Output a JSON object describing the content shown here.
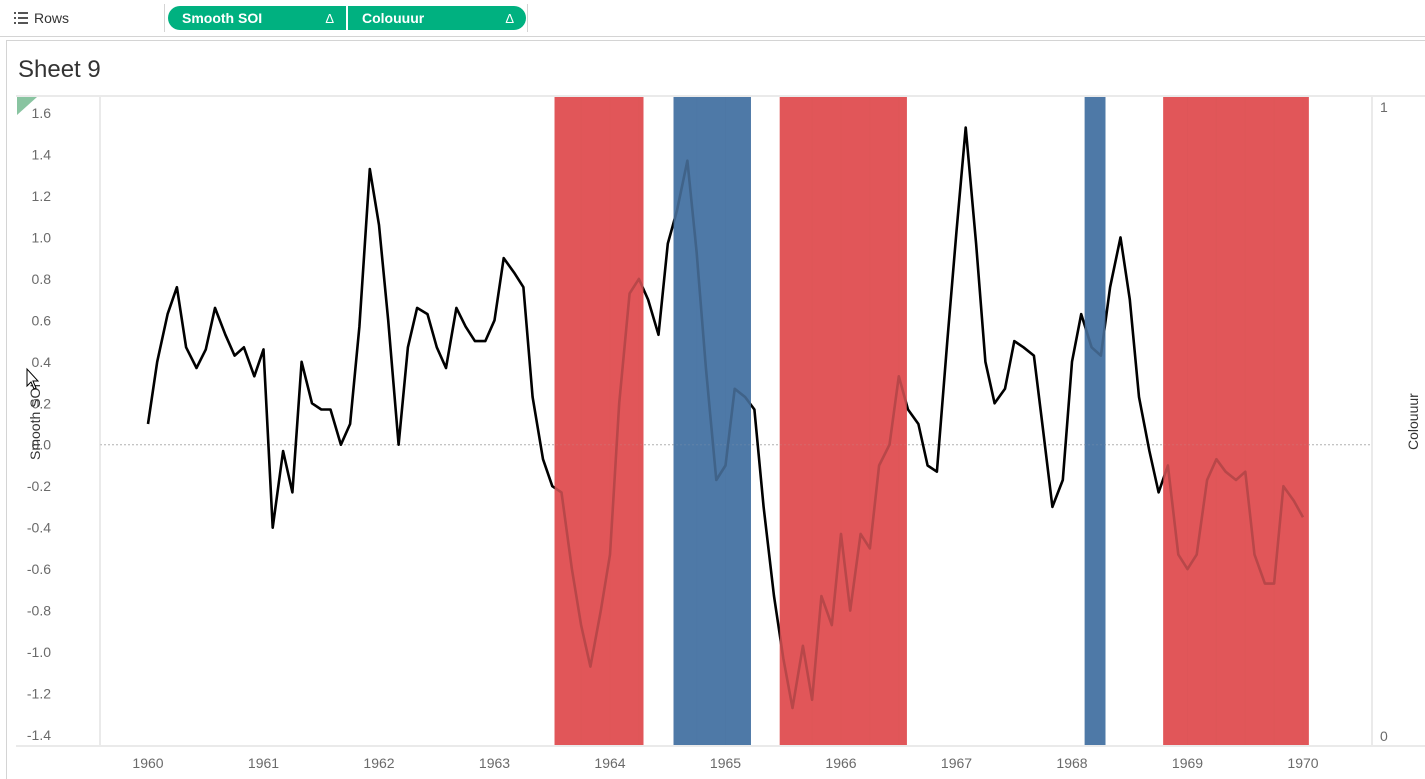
{
  "shelf": {
    "label": "Rows",
    "icon": "rows-list-icon",
    "pills": [
      {
        "label": "Smooth SOI",
        "marker": "Δ"
      },
      {
        "label": "Colouuur",
        "marker": "Δ"
      }
    ],
    "pill_color": "#00b180"
  },
  "sheet": {
    "title": "Sheet 9"
  },
  "chart_data": {
    "type": "line",
    "x_ticks": [
      "1960",
      "1961",
      "1962",
      "1963",
      "1964",
      "1965",
      "1966",
      "1967",
      "1968",
      "1969",
      "1970"
    ],
    "y_ticks": [
      "1.6",
      "1.4",
      "1.2",
      "1.0",
      "0.8",
      "0.6",
      "0.4",
      "0.2",
      "0.0",
      "-0.2",
      "-0.4",
      "-0.6",
      "-0.8",
      "-1.0",
      "-1.2",
      "-1.4"
    ],
    "y_right_ticks": [
      "1",
      "0"
    ],
    "ylabel": "Smooth SOI",
    "ylabel_right": "Colouuur",
    "ylim": [
      -1.4,
      1.6
    ],
    "xlim": [
      1959.9,
      1970.45
    ],
    "y_right_range": [
      0,
      1
    ],
    "zero_line": true,
    "line_color": "#000000",
    "series": [
      {
        "name": "Smooth SOI",
        "points": [
          [
            1960.0,
            0.1
          ],
          [
            1960.08,
            0.4
          ],
          [
            1960.17,
            0.63
          ],
          [
            1960.25,
            0.76
          ],
          [
            1960.33,
            0.47
          ],
          [
            1960.42,
            0.37
          ],
          [
            1960.5,
            0.46
          ],
          [
            1960.58,
            0.66
          ],
          [
            1960.67,
            0.53
          ],
          [
            1960.75,
            0.43
          ],
          [
            1960.83,
            0.47
          ],
          [
            1960.92,
            0.33
          ],
          [
            1961.0,
            0.46
          ],
          [
            1961.08,
            -0.4
          ],
          [
            1961.17,
            -0.03
          ],
          [
            1961.25,
            -0.23
          ],
          [
            1961.33,
            0.4
          ],
          [
            1961.42,
            0.2
          ],
          [
            1961.5,
            0.17
          ],
          [
            1961.58,
            0.17
          ],
          [
            1961.67,
            0.0
          ],
          [
            1961.75,
            0.1
          ],
          [
            1961.83,
            0.57
          ],
          [
            1961.92,
            1.33
          ],
          [
            1962.0,
            1.06
          ],
          [
            1962.08,
            0.6
          ],
          [
            1962.17,
            0.0
          ],
          [
            1962.25,
            0.47
          ],
          [
            1962.33,
            0.66
          ],
          [
            1962.42,
            0.63
          ],
          [
            1962.5,
            0.47
          ],
          [
            1962.58,
            0.37
          ],
          [
            1962.67,
            0.66
          ],
          [
            1962.75,
            0.57
          ],
          [
            1962.83,
            0.5
          ],
          [
            1962.92,
            0.5
          ],
          [
            1963.0,
            0.6
          ],
          [
            1963.08,
            0.9
          ],
          [
            1963.17,
            0.83
          ],
          [
            1963.25,
            0.76
          ],
          [
            1963.33,
            0.23
          ],
          [
            1963.42,
            -0.07
          ],
          [
            1963.5,
            -0.2
          ],
          [
            1963.58,
            -0.23
          ],
          [
            1963.67,
            -0.6
          ],
          [
            1963.75,
            -0.87
          ],
          [
            1963.83,
            -1.07
          ],
          [
            1963.92,
            -0.8
          ],
          [
            1964.0,
            -0.53
          ],
          [
            1964.08,
            0.2
          ],
          [
            1964.17,
            0.73
          ],
          [
            1964.25,
            0.8
          ],
          [
            1964.33,
            0.7
          ],
          [
            1964.42,
            0.53
          ],
          [
            1964.5,
            0.97
          ],
          [
            1964.58,
            1.13
          ],
          [
            1964.67,
            1.37
          ],
          [
            1964.75,
            0.93
          ],
          [
            1964.83,
            0.37
          ],
          [
            1964.92,
            -0.17
          ],
          [
            1965.0,
            -0.1
          ],
          [
            1965.08,
            0.27
          ],
          [
            1965.17,
            0.23
          ],
          [
            1965.25,
            0.17
          ],
          [
            1965.33,
            -0.3
          ],
          [
            1965.42,
            -0.73
          ],
          [
            1965.5,
            -1.03
          ],
          [
            1965.58,
            -1.27
          ],
          [
            1965.67,
            -0.97
          ],
          [
            1965.75,
            -1.23
          ],
          [
            1965.83,
            -0.73
          ],
          [
            1965.92,
            -0.87
          ],
          [
            1966.0,
            -0.43
          ],
          [
            1966.08,
            -0.8
          ],
          [
            1966.17,
            -0.43
          ],
          [
            1966.25,
            -0.5
          ],
          [
            1966.33,
            -0.1
          ],
          [
            1966.42,
            0.0
          ],
          [
            1966.5,
            0.33
          ],
          [
            1966.58,
            0.17
          ],
          [
            1966.67,
            0.1
          ],
          [
            1966.75,
            -0.1
          ],
          [
            1966.83,
            -0.13
          ],
          [
            1966.92,
            0.5
          ],
          [
            1967.0,
            1.03
          ],
          [
            1967.08,
            1.53
          ],
          [
            1967.17,
            0.97
          ],
          [
            1967.25,
            0.4
          ],
          [
            1967.33,
            0.2
          ],
          [
            1967.42,
            0.27
          ],
          [
            1967.5,
            0.5
          ],
          [
            1967.58,
            0.47
          ],
          [
            1967.67,
            0.43
          ],
          [
            1967.75,
            0.07
          ],
          [
            1967.83,
            -0.3
          ],
          [
            1967.92,
            -0.17
          ],
          [
            1968.0,
            0.4
          ],
          [
            1968.08,
            0.63
          ],
          [
            1968.17,
            0.47
          ],
          [
            1968.25,
            0.43
          ],
          [
            1968.33,
            0.76
          ],
          [
            1968.42,
            1.0
          ],
          [
            1968.5,
            0.7
          ],
          [
            1968.58,
            0.23
          ],
          [
            1968.67,
            -0.03
          ],
          [
            1968.75,
            -0.23
          ],
          [
            1968.83,
            -0.1
          ],
          [
            1968.92,
            -0.53
          ],
          [
            1969.0,
            -0.6
          ],
          [
            1969.08,
            -0.53
          ],
          [
            1969.17,
            -0.17
          ],
          [
            1969.25,
            -0.07
          ],
          [
            1969.33,
            -0.13
          ],
          [
            1969.42,
            -0.17
          ],
          [
            1969.5,
            -0.13
          ],
          [
            1969.58,
            -0.53
          ],
          [
            1969.67,
            -0.67
          ],
          [
            1969.75,
            -0.67
          ],
          [
            1969.83,
            -0.2
          ],
          [
            1969.92,
            -0.27
          ],
          [
            1970.0,
            -0.35
          ]
        ]
      }
    ],
    "bands": [
      {
        "start": 1963.52,
        "end": 1964.29,
        "colour": "#e15759",
        "value": 1
      },
      {
        "start": 1964.55,
        "end": 1965.22,
        "colour": "#4e79a7",
        "value": 1
      },
      {
        "start": 1965.47,
        "end": 1966.57,
        "colour": "#e15759",
        "value": 1
      },
      {
        "start": 1968.11,
        "end": 1968.29,
        "colour": "#4e79a7",
        "value": 1
      },
      {
        "start": 1968.79,
        "end": 1970.05,
        "colour": "#e15759",
        "value": 1
      }
    ]
  }
}
